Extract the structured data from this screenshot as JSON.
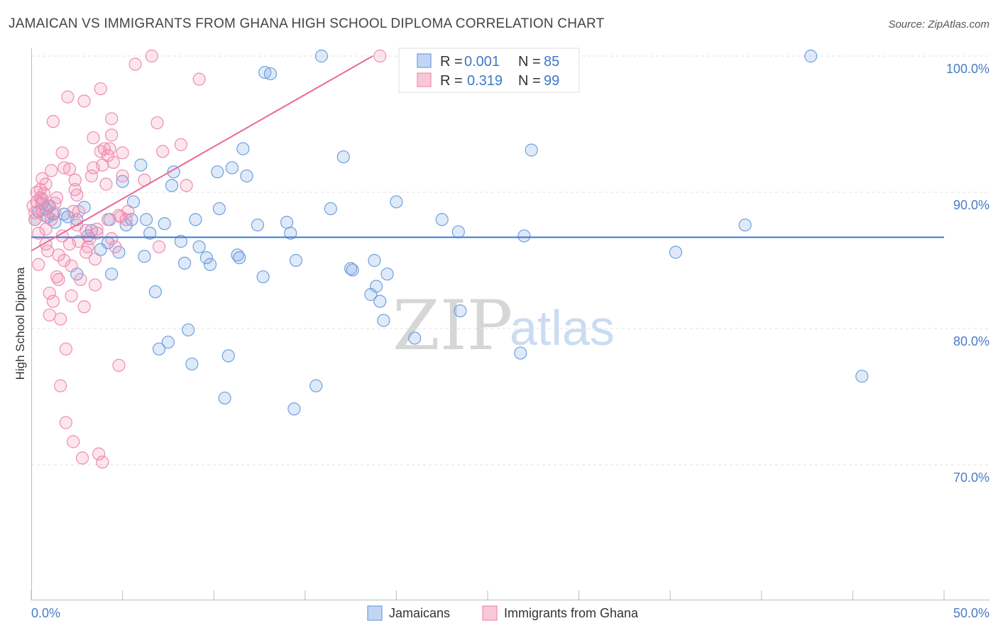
{
  "title": "JAMAICAN VS IMMIGRANTS FROM GHANA HIGH SCHOOL DIPLOMA CORRELATION CHART",
  "source": "Source: ZipAtlas.com",
  "watermark": {
    "zip": "ZIP",
    "atlas": "atlas"
  },
  "colors": {
    "blue": "#6f9fe0",
    "blue_line": "#3a78d4",
    "pink": "#f08cb0",
    "pink_line": "#e86a95",
    "tick_text": "#4a7cc7"
  },
  "legend": {
    "r_label": "R =",
    "n_label": "N =",
    "rows": [
      {
        "r": "0.001",
        "n": "85",
        "color": "#6f9fe0"
      },
      {
        "r": "0.319",
        "n": "99",
        "color": "#f08cb0"
      }
    ]
  },
  "bottom_legend": {
    "items": [
      "Jamaicans",
      "Immigrants from Ghana"
    ]
  },
  "chart_data": {
    "type": "scatter",
    "title": "JAMAICAN VS IMMIGRANTS FROM GHANA HIGH SCHOOL DIPLOMA CORRELATION CHART",
    "ylabel": "High School Diploma",
    "xlabel": "",
    "xlim": [
      0,
      50
    ],
    "ylim": [
      61,
      101
    ],
    "x_tick_labels": [
      "0.0%",
      "50.0%"
    ],
    "y_ticks": [
      {
        "value": 100,
        "label": "100.0%"
      },
      {
        "value": 90,
        "label": "90.0%"
      },
      {
        "value": 80,
        "label": "80.0%"
      },
      {
        "value": 70,
        "label": "70.0%"
      }
    ],
    "grid": true,
    "legend_position": "top-center",
    "series": [
      {
        "name": "Jamaicans",
        "r": 0.001,
        "n": 85,
        "trend": {
          "x": [
            0,
            50
          ],
          "y": [
            86.7,
            86.7
          ]
        },
        "points": [
          [
            0.2,
            88.0
          ],
          [
            0.4,
            88.6
          ],
          [
            0.6,
            89.2
          ],
          [
            0.8,
            88.8
          ],
          [
            0.9,
            88.2
          ],
          [
            1.0,
            89.0
          ],
          [
            1.2,
            88.4
          ],
          [
            1.3,
            87.8
          ],
          [
            1.8,
            88.4
          ],
          [
            2.0,
            88.2
          ],
          [
            2.5,
            88.0
          ],
          [
            2.5,
            84.0
          ],
          [
            2.9,
            88.9
          ],
          [
            3.1,
            86.8
          ],
          [
            3.3,
            87.2
          ],
          [
            3.8,
            85.8
          ],
          [
            4.2,
            86.3
          ],
          [
            4.3,
            88.0
          ],
          [
            4.4,
            84.0
          ],
          [
            4.8,
            85.6
          ],
          [
            5.0,
            90.8
          ],
          [
            5.2,
            87.6
          ],
          [
            5.5,
            88.0
          ],
          [
            5.6,
            89.3
          ],
          [
            6.0,
            92.0
          ],
          [
            6.2,
            85.3
          ],
          [
            6.3,
            88.0
          ],
          [
            6.5,
            87.0
          ],
          [
            6.8,
            82.7
          ],
          [
            7.0,
            78.5
          ],
          [
            7.3,
            87.7
          ],
          [
            7.5,
            79.0
          ],
          [
            7.7,
            90.5
          ],
          [
            7.8,
            91.5
          ],
          [
            8.2,
            86.4
          ],
          [
            8.4,
            84.8
          ],
          [
            8.6,
            79.9
          ],
          [
            8.8,
            77.4
          ],
          [
            9.0,
            88.0
          ],
          [
            9.2,
            86.0
          ],
          [
            9.6,
            85.2
          ],
          [
            9.8,
            84.7
          ],
          [
            10.2,
            91.5
          ],
          [
            10.3,
            88.8
          ],
          [
            10.6,
            74.9
          ],
          [
            10.8,
            78.0
          ],
          [
            11.0,
            91.8
          ],
          [
            11.3,
            85.4
          ],
          [
            11.4,
            85.2
          ],
          [
            11.6,
            93.2
          ],
          [
            11.8,
            91.2
          ],
          [
            12.4,
            87.6
          ],
          [
            12.7,
            83.8
          ],
          [
            12.8,
            98.8
          ],
          [
            13.1,
            98.7
          ],
          [
            14.0,
            87.8
          ],
          [
            14.2,
            87.0
          ],
          [
            14.4,
            74.1
          ],
          [
            14.5,
            85.0
          ],
          [
            15.6,
            75.8
          ],
          [
            15.9,
            100.0
          ],
          [
            16.4,
            88.8
          ],
          [
            17.1,
            92.6
          ],
          [
            17.5,
            84.4
          ],
          [
            17.6,
            84.3
          ],
          [
            18.6,
            82.5
          ],
          [
            18.8,
            85.0
          ],
          [
            18.9,
            83.1
          ],
          [
            19.1,
            82.0
          ],
          [
            19.3,
            80.6
          ],
          [
            19.5,
            84.0
          ],
          [
            20.0,
            89.3
          ],
          [
            21.0,
            79.3
          ],
          [
            22.5,
            88.0
          ],
          [
            23.4,
            87.1
          ],
          [
            23.5,
            81.3
          ],
          [
            26.2,
            100.0
          ],
          [
            26.8,
            78.2
          ],
          [
            27.0,
            86.8
          ],
          [
            27.4,
            93.1
          ],
          [
            29.0,
            98.0
          ],
          [
            35.3,
            85.6
          ],
          [
            39.1,
            87.6
          ],
          [
            42.7,
            100.0
          ],
          [
            45.5,
            76.5
          ]
        ]
      },
      {
        "name": "Immigrants from Ghana",
        "r": 0.319,
        "n": 99,
        "trend": {
          "x": [
            0,
            18.7
          ],
          "y": [
            85.7,
            100.0
          ]
        },
        "points": [
          [
            0.1,
            89.0
          ],
          [
            0.2,
            88.5
          ],
          [
            0.3,
            90.0
          ],
          [
            0.3,
            89.3
          ],
          [
            0.4,
            87.0
          ],
          [
            0.4,
            84.7
          ],
          [
            0.5,
            89.6
          ],
          [
            0.5,
            90.2
          ],
          [
            0.6,
            91.0
          ],
          [
            0.6,
            88.7
          ],
          [
            0.7,
            89.9
          ],
          [
            0.7,
            88.3
          ],
          [
            0.8,
            86.2
          ],
          [
            0.8,
            87.3
          ],
          [
            0.8,
            90.6
          ],
          [
            0.9,
            85.7
          ],
          [
            0.9,
            89.0
          ],
          [
            1.0,
            81.0
          ],
          [
            1.0,
            82.6
          ],
          [
            1.1,
            88.0
          ],
          [
            1.1,
            91.6
          ],
          [
            1.2,
            95.2
          ],
          [
            1.2,
            82.0
          ],
          [
            1.3,
            89.2
          ],
          [
            1.4,
            89.6
          ],
          [
            1.4,
            83.8
          ],
          [
            1.5,
            85.4
          ],
          [
            1.5,
            83.6
          ],
          [
            1.6,
            80.7
          ],
          [
            1.6,
            75.8
          ],
          [
            1.7,
            86.8
          ],
          [
            1.7,
            92.9
          ],
          [
            1.8,
            91.8
          ],
          [
            1.8,
            85.0
          ],
          [
            1.9,
            73.1
          ],
          [
            1.9,
            78.5
          ],
          [
            2.0,
            97.0
          ],
          [
            2.1,
            91.7
          ],
          [
            2.1,
            86.2
          ],
          [
            2.2,
            82.4
          ],
          [
            2.2,
            84.6
          ],
          [
            2.3,
            88.6
          ],
          [
            2.3,
            71.7
          ],
          [
            2.4,
            90.2
          ],
          [
            2.4,
            90.9
          ],
          [
            2.5,
            89.8
          ],
          [
            2.5,
            87.6
          ],
          [
            2.6,
            86.4
          ],
          [
            2.7,
            83.6
          ],
          [
            2.8,
            70.5
          ],
          [
            2.9,
            81.6
          ],
          [
            2.9,
            96.7
          ],
          [
            3.0,
            87.2
          ],
          [
            3.0,
            85.6
          ],
          [
            3.1,
            86.0
          ],
          [
            3.2,
            86.6
          ],
          [
            3.3,
            91.2
          ],
          [
            3.4,
            94.0
          ],
          [
            3.4,
            91.8
          ],
          [
            3.5,
            83.2
          ],
          [
            3.5,
            85.1
          ],
          [
            3.6,
            87.3
          ],
          [
            3.7,
            70.8
          ],
          [
            3.8,
            97.6
          ],
          [
            3.8,
            93.0
          ],
          [
            3.9,
            92.0
          ],
          [
            3.9,
            70.2
          ],
          [
            4.0,
            93.2
          ],
          [
            4.1,
            90.6
          ],
          [
            4.2,
            92.7
          ],
          [
            4.3,
            93.2
          ],
          [
            4.4,
            86.6
          ],
          [
            4.4,
            95.4
          ],
          [
            4.4,
            94.2
          ],
          [
            4.5,
            92.2
          ],
          [
            4.6,
            86.0
          ],
          [
            4.8,
            88.3
          ],
          [
            4.8,
            77.3
          ],
          [
            4.9,
            88.2
          ],
          [
            5.0,
            92.9
          ],
          [
            5.0,
            91.2
          ],
          [
            5.2,
            88.0
          ],
          [
            5.3,
            88.6
          ],
          [
            5.7,
            99.4
          ],
          [
            6.2,
            90.9
          ],
          [
            6.6,
            100.0
          ],
          [
            6.9,
            95.1
          ],
          [
            7.0,
            86.0
          ],
          [
            7.2,
            93.0
          ],
          [
            8.2,
            93.5
          ],
          [
            8.5,
            90.5
          ],
          [
            9.2,
            98.3
          ],
          [
            19.1,
            100.0
          ],
          [
            0.2,
            88.0
          ],
          [
            0.6,
            89.5
          ],
          [
            1.3,
            88.5
          ],
          [
            2.6,
            88.6
          ],
          [
            3.6,
            87.0
          ],
          [
            4.2,
            88.0
          ]
        ]
      }
    ]
  }
}
